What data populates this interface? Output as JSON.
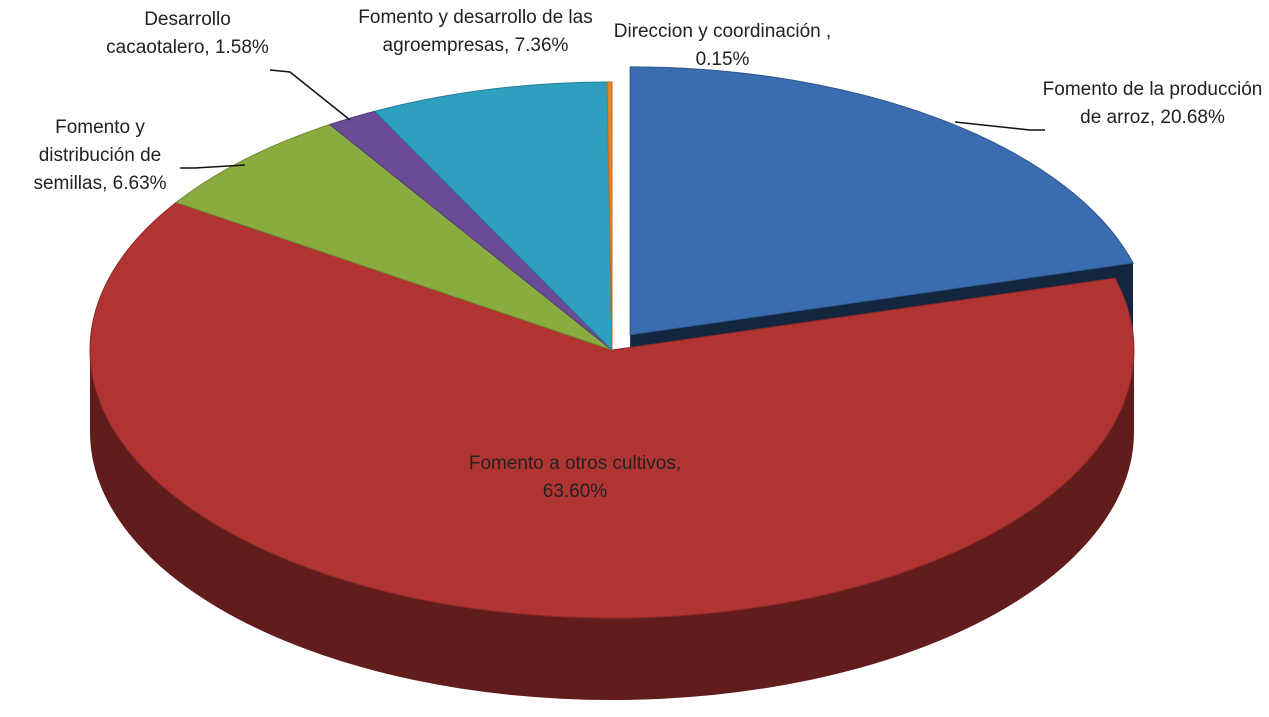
{
  "chart_data": {
    "type": "pie3d",
    "categories": [
      "Fomento de la producción de arroz,",
      "Fomento a otros cultivos,",
      "Fomento y distribución de semillas,",
      "Desarrollo cacaotalero,",
      "Fomento y desarrollo de las agroempresas,",
      "Direccion y coordinación ,"
    ],
    "values": [
      20.68,
      63.6,
      6.63,
      1.58,
      7.36,
      0.15
    ],
    "value_labels": [
      "20.68%",
      "63.60%",
      "6.63%",
      "1.58%",
      "7.36%",
      "0.15%"
    ],
    "colors": [
      "#3a6db0",
      "#b03532",
      "#8aab3e",
      "#6a4b95",
      "#2f9fbf",
      "#e8862a"
    ],
    "exploded": [
      0
    ]
  }
}
